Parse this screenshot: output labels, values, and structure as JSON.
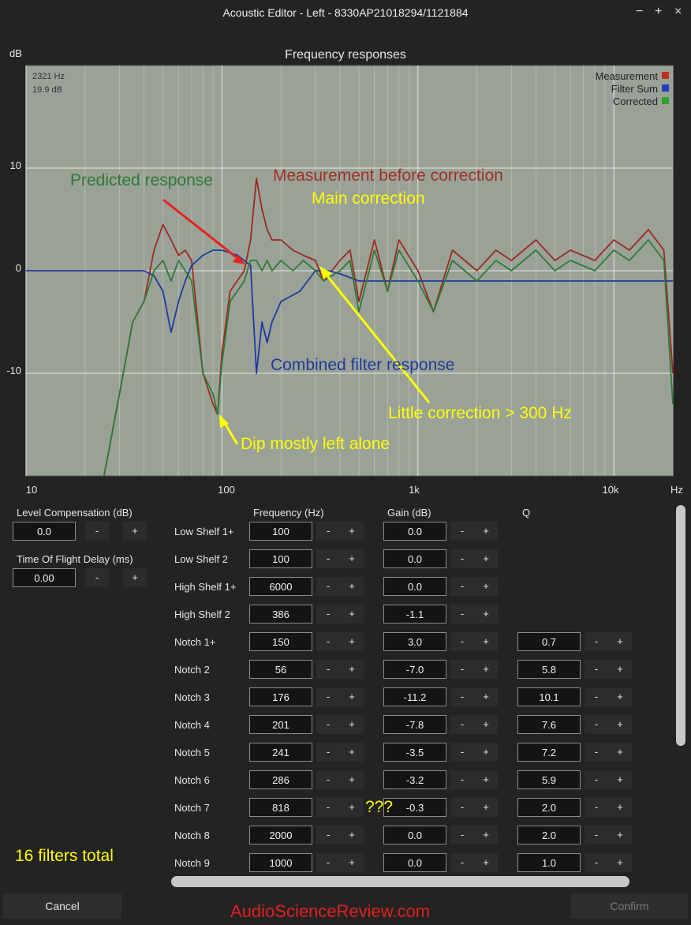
{
  "window": {
    "title": "Acoustic Editor - Left - 8330AP21018294/1121884",
    "minimize": "−",
    "maximize": "+",
    "close": "×"
  },
  "chart": {
    "title": "Frequency responses",
    "y_unit": "dB",
    "x_unit": "Hz",
    "cursor_freq": "2321 Hz",
    "cursor_gain": "19.9 dB",
    "legend": [
      {
        "label": "Measurement",
        "color": "#c03020"
      },
      {
        "label": "Filter Sum",
        "color": "#2040c0"
      },
      {
        "label": "Corrected",
        "color": "#30a030"
      }
    ],
    "y_ticks": [
      "10",
      "0",
      "-10"
    ],
    "x_ticks": [
      "10",
      "100",
      "1k",
      "10k"
    ]
  },
  "chart_data": {
    "type": "line",
    "x_scale": "log",
    "xlim": [
      10,
      20000
    ],
    "ylim": [
      -20,
      20
    ],
    "series": [
      {
        "name": "Measurement",
        "color": "#9b2a20",
        "x": [
          25,
          30,
          35,
          40,
          45,
          50,
          55,
          60,
          65,
          70,
          80,
          90,
          95,
          100,
          110,
          130,
          140,
          150,
          160,
          170,
          180,
          200,
          230,
          260,
          300,
          330,
          400,
          450,
          500,
          600,
          700,
          800,
          1000,
          1200,
          1500,
          2000,
          2500,
          3000,
          4000,
          5000,
          6000,
          8000,
          10000,
          12000,
          15000,
          18000,
          20000
        ],
        "y": [
          -20,
          -12,
          -5,
          -3,
          2,
          4.5,
          3,
          1.5,
          2,
          1,
          -10,
          -13,
          -14,
          -8,
          -2,
          0,
          3,
          9,
          6,
          4,
          3,
          3,
          2,
          1.5,
          1,
          -1,
          1,
          2,
          -3,
          3,
          -2,
          3,
          0,
          -4,
          2,
          0,
          2,
          1,
          3,
          1,
          2,
          1,
          3,
          2,
          4,
          2,
          -10
        ]
      },
      {
        "name": "Filter Sum",
        "color": "#1f3a9a",
        "x": [
          10,
          40,
          45,
          50,
          55,
          60,
          65,
          70,
          80,
          90,
          100,
          120,
          140,
          150,
          160,
          170,
          180,
          200,
          250,
          300,
          350,
          400,
          500,
          700,
          1000,
          2000,
          5000,
          10000,
          20000
        ],
        "y": [
          0,
          0,
          -0.5,
          -2,
          -6,
          -3,
          -1,
          0.5,
          1.5,
          2,
          2,
          1.5,
          0.5,
          -10,
          -5,
          -7,
          -5,
          -3,
          -2,
          0,
          0,
          -0.3,
          -1,
          -1,
          -1,
          -1,
          -1,
          -1,
          -1
        ]
      },
      {
        "name": "Corrected",
        "color": "#2f7a36",
        "x": [
          25,
          30,
          35,
          40,
          45,
          50,
          55,
          60,
          65,
          70,
          80,
          90,
          95,
          100,
          110,
          130,
          140,
          150,
          160,
          170,
          180,
          200,
          230,
          260,
          300,
          330,
          400,
          450,
          500,
          600,
          700,
          800,
          1000,
          1200,
          1500,
          2000,
          2500,
          3000,
          4000,
          5000,
          6000,
          8000,
          10000,
          12000,
          15000,
          18000,
          20000
        ],
        "y": [
          -20,
          -12,
          -5,
          -3,
          0,
          1,
          -1,
          1,
          0,
          -1,
          -10,
          -12,
          -14,
          -9,
          -3,
          -1,
          1,
          1,
          0,
          1,
          0,
          1,
          0,
          1,
          0,
          -1,
          0,
          1,
          -4,
          2,
          -2,
          2,
          -1,
          -4,
          1,
          -1,
          1,
          0,
          2,
          0,
          1,
          0,
          2,
          1,
          3,
          1,
          -13
        ]
      }
    ]
  },
  "annotations": {
    "predicted": "Predicted response",
    "measurement": "Measurement before correction",
    "main_correction": "Main correction",
    "combined": "Combined filter response",
    "little": "Little correction > 300 Hz",
    "dip": "Dip mostly left alone",
    "filters_total": "16 filters total",
    "question": "???",
    "watermark": "AudioScienceReview.com"
  },
  "left_panel": {
    "level_label": "Level Compensation (dB)",
    "level_value": "0.0",
    "tof_label": "Time Of Flight Delay (ms)",
    "tof_value": "0.00",
    "minus": "-",
    "plus": "+"
  },
  "columns": {
    "frequency": "Frequency (Hz)",
    "gain": "Gain (dB)",
    "q": "Q"
  },
  "filters": [
    {
      "name": "Low Shelf 1+",
      "freq": "100",
      "gain": "0.0",
      "q": ""
    },
    {
      "name": "Low Shelf 2",
      "freq": "100",
      "gain": "0.0",
      "q": ""
    },
    {
      "name": "High Shelf 1+",
      "freq": "6000",
      "gain": "0.0",
      "q": ""
    },
    {
      "name": "High Shelf 2",
      "freq": "386",
      "gain": "-1.1",
      "q": ""
    },
    {
      "name": "Notch 1+",
      "freq": "150",
      "gain": "3.0",
      "q": "0.7"
    },
    {
      "name": "Notch 2",
      "freq": "56",
      "gain": "-7.0",
      "q": "5.8"
    },
    {
      "name": "Notch 3",
      "freq": "176",
      "gain": "-11.2",
      "q": "10.1"
    },
    {
      "name": "Notch 4",
      "freq": "201",
      "gain": "-7.8",
      "q": "7.6"
    },
    {
      "name": "Notch 5",
      "freq": "241",
      "gain": "-3.5",
      "q": "7.2"
    },
    {
      "name": "Notch 6",
      "freq": "286",
      "gain": "-3.2",
      "q": "5.9"
    },
    {
      "name": "Notch 7",
      "freq": "818",
      "gain": "-0.3",
      "q": "2.0"
    },
    {
      "name": "Notch 8",
      "freq": "2000",
      "gain": "0.0",
      "q": "2.0"
    },
    {
      "name": "Notch 9",
      "freq": "1000",
      "gain": "0.0",
      "q": "1.0"
    }
  ],
  "footer": {
    "cancel": "Cancel",
    "confirm": "Confirm"
  }
}
